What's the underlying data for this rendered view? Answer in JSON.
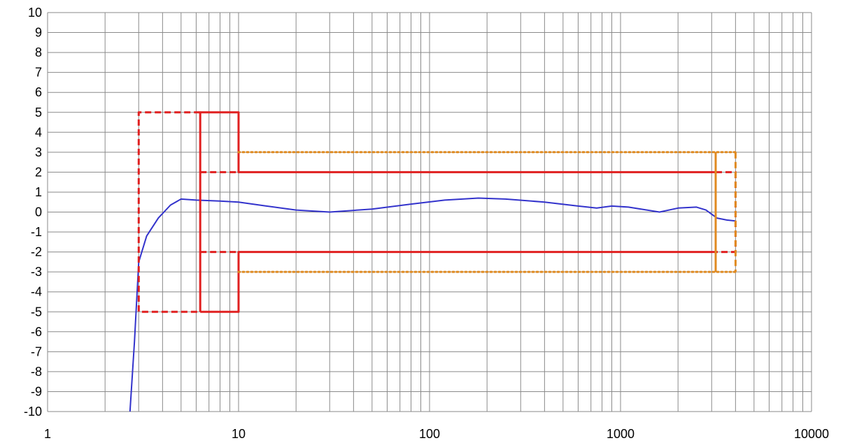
{
  "chart_data": {
    "type": "line",
    "title": "",
    "xlabel": "",
    "ylabel": "",
    "x_scale": "log",
    "xlim": [
      1,
      10000
    ],
    "ylim": [
      -10,
      10
    ],
    "grid": true,
    "legend": "none",
    "x_ticks": [
      {
        "value": 1,
        "label": "1"
      },
      {
        "value": 10,
        "label": "10"
      },
      {
        "value": 100,
        "label": "100"
      },
      {
        "value": 1000,
        "label": "1000"
      },
      {
        "value": 10000,
        "label": "10000"
      }
    ],
    "y_ticks": [
      10,
      9,
      8,
      7,
      6,
      5,
      4,
      3,
      2,
      1,
      0,
      -1,
      -2,
      -3,
      -4,
      -5,
      -6,
      -7,
      -8,
      -9,
      -10
    ],
    "series": [
      {
        "color": "#3333cc",
        "style": "solid",
        "points": [
          [
            2.7,
            -10
          ],
          [
            2.85,
            -6.5
          ],
          [
            3.0,
            -2.5
          ],
          [
            3.3,
            -1.2
          ],
          [
            3.8,
            -0.3
          ],
          [
            4.4,
            0.35
          ],
          [
            5.0,
            0.65
          ],
          [
            6.0,
            0.6
          ],
          [
            8.0,
            0.55
          ],
          [
            10.0,
            0.5
          ],
          [
            14,
            0.3
          ],
          [
            20,
            0.1
          ],
          [
            30,
            0.0
          ],
          [
            50,
            0.15
          ],
          [
            80,
            0.4
          ],
          [
            120,
            0.6
          ],
          [
            180,
            0.7
          ],
          [
            250,
            0.65
          ],
          [
            400,
            0.5
          ],
          [
            600,
            0.3
          ],
          [
            750,
            0.2
          ],
          [
            900,
            0.3
          ],
          [
            1100,
            0.25
          ],
          [
            1600,
            0.0
          ],
          [
            2000,
            0.2
          ],
          [
            2500,
            0.25
          ],
          [
            2800,
            0.1
          ],
          [
            3200,
            -0.3
          ],
          [
            3600,
            -0.4
          ],
          [
            4000,
            -0.45
          ]
        ]
      },
      {
        "color": "#e02020",
        "style": "solid",
        "points": [
          [
            6.3,
            -5
          ],
          [
            6.3,
            5
          ],
          [
            10,
            5
          ],
          [
            10,
            2
          ],
          [
            3150,
            2
          ],
          [
            3150,
            -2
          ],
          [
            10,
            -2
          ],
          [
            10,
            -5
          ],
          [
            6.3,
            -5
          ]
        ]
      },
      {
        "color": "#e02020",
        "style": "dashed",
        "points": [
          [
            6.3,
            5
          ],
          [
            3,
            5
          ],
          [
            3,
            -5
          ],
          [
            6.3,
            -5
          ]
        ]
      },
      {
        "color": "#e02020",
        "style": "dashed",
        "points": [
          [
            6.3,
            2
          ],
          [
            10,
            2
          ]
        ]
      },
      {
        "color": "#e02020",
        "style": "dashed",
        "points": [
          [
            6.3,
            -2
          ],
          [
            10,
            -2
          ]
        ]
      },
      {
        "color": "#e02020",
        "style": "dashed",
        "points": [
          [
            3150,
            2
          ],
          [
            4000,
            2
          ],
          [
            4000,
            -2
          ],
          [
            3150,
            -2
          ]
        ]
      },
      {
        "color": "#e08a20",
        "style": "dotted",
        "points": [
          [
            10,
            3
          ],
          [
            4000,
            3
          ]
        ]
      },
      {
        "color": "#e08a20",
        "style": "dotted",
        "points": [
          [
            10,
            -3
          ],
          [
            4000,
            -3
          ]
        ]
      },
      {
        "color": "#e08a20",
        "style": "solid",
        "points": [
          [
            3150,
            3
          ],
          [
            3150,
            -3
          ]
        ]
      },
      {
        "color": "#e08a20",
        "style": "dashed",
        "points": [
          [
            4000,
            3
          ],
          [
            4000,
            -3
          ]
        ]
      }
    ]
  }
}
